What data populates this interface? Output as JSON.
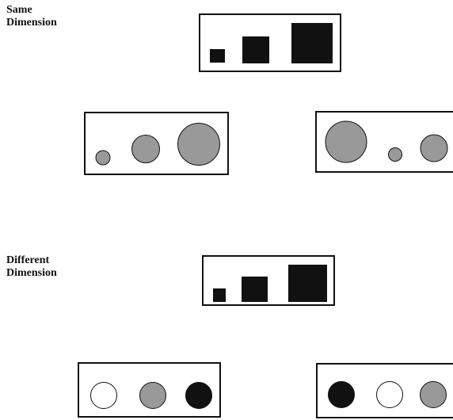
{
  "sections": {
    "same": {
      "label_line1": "Same",
      "label_line2": "Dimension"
    },
    "different": {
      "label_line1": "Different",
      "label_line2": "Dimension"
    }
  },
  "colors": {
    "black": "#111111",
    "gray": "#999999",
    "white": "#ffffff",
    "outline": "#111111"
  }
}
